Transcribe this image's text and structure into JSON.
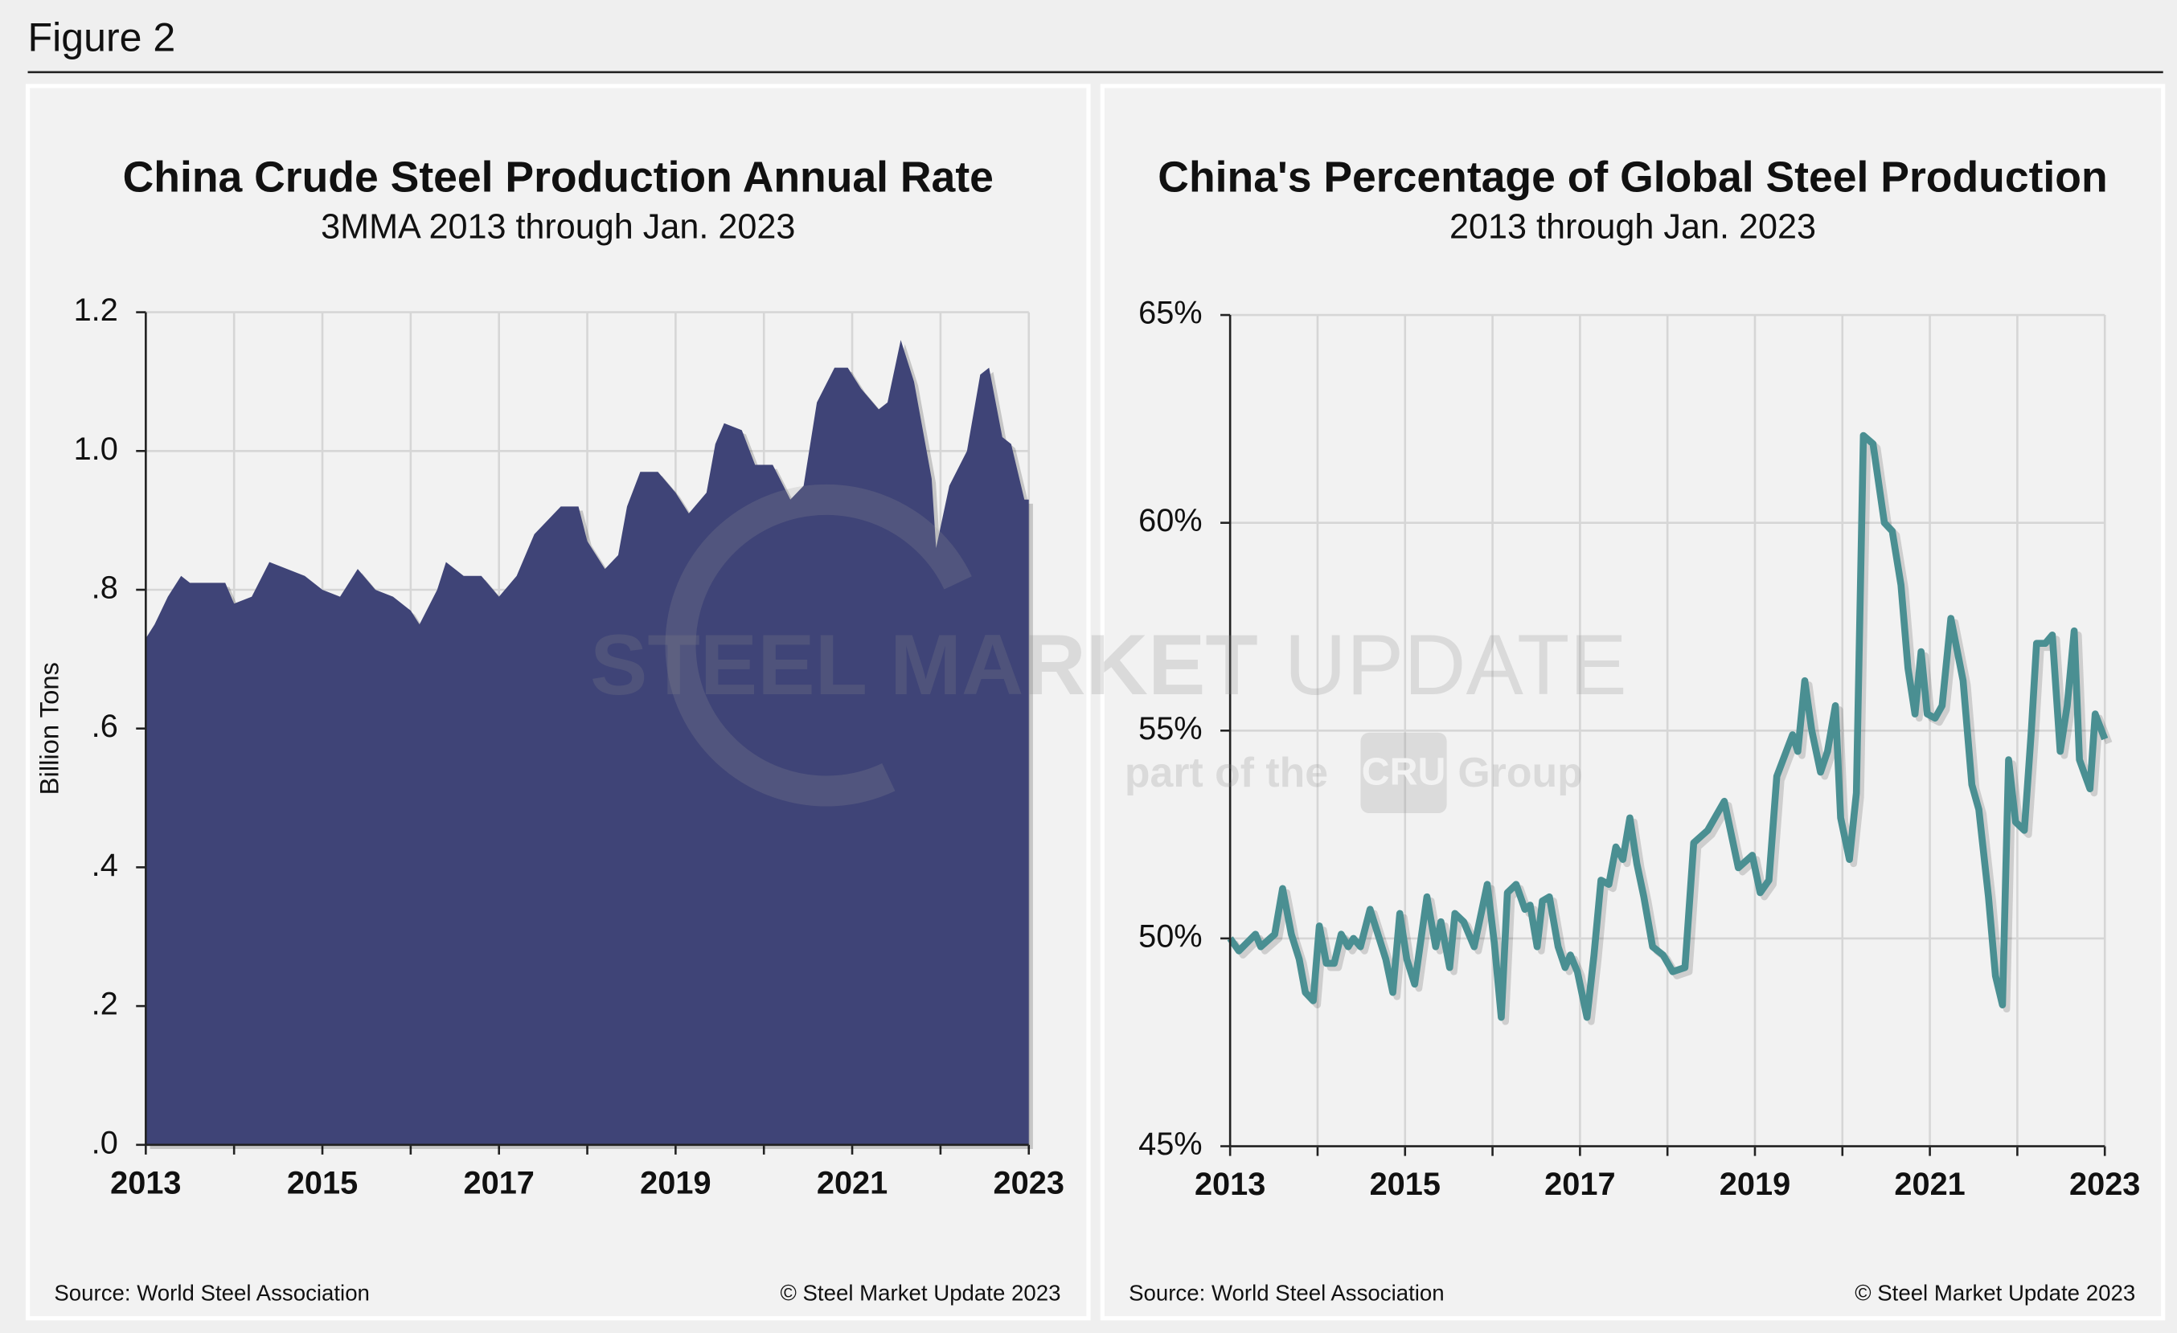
{
  "header": {
    "title": "Figure 2"
  },
  "watermark": {
    "brand_bold": "STEEL MARKET",
    "brand_light": "UPDATE",
    "part": "part of the",
    "logo": "CRU",
    "group": "Group"
  },
  "chart_data": [
    {
      "type": "area",
      "title": "China Crude Steel Production Annual Rate",
      "subtitle": "3MMA 2013 through Jan. 2023",
      "y_label": "Billion Tons",
      "source": "Source: World Steel Association",
      "copyright": "© Steel Market Update 2023",
      "color": "#3f4477",
      "grid": true,
      "x": [
        2013.0,
        2013.1,
        2013.25,
        2013.4,
        2013.5,
        2013.7,
        2013.9,
        2014.0,
        2014.2,
        2014.4,
        2014.6,
        2014.8,
        2015.0,
        2015.2,
        2015.4,
        2015.6,
        2015.8,
        2016.0,
        2016.1,
        2016.3,
        2016.4,
        2016.6,
        2016.8,
        2017.0,
        2017.2,
        2017.4,
        2017.7,
        2017.9,
        2018.0,
        2018.2,
        2018.35,
        2018.45,
        2018.6,
        2018.8,
        2019.0,
        2019.15,
        2019.35,
        2019.45,
        2019.55,
        2019.75,
        2019.9,
        2020.1,
        2020.3,
        2020.45,
        2020.6,
        2020.8,
        2020.95,
        2021.1,
        2021.3,
        2021.4,
        2021.55,
        2021.7,
        2021.9,
        2021.95,
        2022.1,
        2022.3,
        2022.45,
        2022.55,
        2022.7,
        2022.8,
        2022.95,
        2023.0
      ],
      "values": [
        0.73,
        0.75,
        0.79,
        0.82,
        0.81,
        0.81,
        0.81,
        0.78,
        0.79,
        0.84,
        0.83,
        0.82,
        0.8,
        0.79,
        0.83,
        0.8,
        0.79,
        0.77,
        0.75,
        0.8,
        0.84,
        0.82,
        0.82,
        0.79,
        0.82,
        0.88,
        0.92,
        0.92,
        0.87,
        0.83,
        0.85,
        0.92,
        0.97,
        0.97,
        0.94,
        0.91,
        0.94,
        1.01,
        1.04,
        1.03,
        0.98,
        0.98,
        0.93,
        0.95,
        1.07,
        1.12,
        1.12,
        1.09,
        1.06,
        1.07,
        1.16,
        1.1,
        0.96,
        0.86,
        0.95,
        1.0,
        1.11,
        1.12,
        1.02,
        1.01,
        0.93,
        0.93
      ],
      "xlim": [
        2013,
        2023
      ],
      "xticks": [
        2013,
        2015,
        2017,
        2019,
        2021,
        2023
      ],
      "xminor": [
        2014,
        2016,
        2018,
        2020,
        2022
      ],
      "ylim": [
        0,
        1.2
      ],
      "yticks": [
        {
          "value": 0,
          "label": ".0"
        },
        {
          "value": 0.2,
          "label": ".2"
        },
        {
          "value": 0.4,
          "label": ".4"
        },
        {
          "value": 0.6,
          "label": ".6"
        },
        {
          "value": 0.8,
          "label": ".8"
        },
        {
          "value": 1.0,
          "label": "1.0"
        },
        1.2
      ]
    },
    {
      "type": "line",
      "title": "China's Percentage of Global Steel Production",
      "subtitle": "2013 through Jan. 2023",
      "source": "Source: World Steel Association",
      "copyright": "© Steel Market Update 2023",
      "color": "#4a8f92",
      "grid": true,
      "x": [
        2013.0,
        2013.1,
        2013.29,
        2013.35,
        2013.51,
        2013.6,
        2013.7,
        2013.79,
        2013.86,
        2013.95,
        2014.02,
        2014.1,
        2014.19,
        2014.27,
        2014.35,
        2014.41,
        2014.49,
        2014.6,
        2014.78,
        2014.86,
        2014.94,
        2015.02,
        2015.11,
        2015.25,
        2015.35,
        2015.41,
        2015.51,
        2015.57,
        2015.67,
        2015.79,
        2015.94,
        2016.02,
        2016.1,
        2016.17,
        2016.27,
        2016.37,
        2016.43,
        2016.51,
        2016.57,
        2016.65,
        2016.75,
        2016.83,
        2016.89,
        2016.97,
        2017.08,
        2017.16,
        2017.24,
        2017.33,
        2017.41,
        2017.49,
        2017.57,
        2017.65,
        2017.73,
        2017.83,
        2017.95,
        2018.06,
        2018.2,
        2018.3,
        2018.46,
        2018.65,
        2018.81,
        2018.97,
        2019.06,
        2019.16,
        2019.25,
        2019.43,
        2019.49,
        2019.57,
        2019.65,
        2019.75,
        2019.83,
        2019.92,
        2019.98,
        2020.08,
        2020.16,
        2020.24,
        2020.35,
        2020.48,
        2020.57,
        2020.67,
        2020.75,
        2020.83,
        2020.9,
        2020.97,
        2021.06,
        2021.14,
        2021.24,
        2021.38,
        2021.48,
        2021.56,
        2021.67,
        2021.75,
        2021.83,
        2021.9,
        2021.98,
        2022.08,
        2022.16,
        2022.22,
        2022.32,
        2022.4,
        2022.49,
        2022.57,
        2022.65,
        2022.71,
        2022.83,
        2022.89,
        2023.0
      ],
      "values": [
        50.0,
        49.7,
        50.1,
        49.8,
        50.1,
        51.2,
        50.1,
        49.5,
        48.7,
        48.5,
        50.3,
        49.4,
        49.4,
        50.1,
        49.8,
        50.0,
        49.8,
        50.7,
        49.5,
        48.7,
        50.6,
        49.5,
        48.9,
        51.0,
        49.8,
        50.4,
        49.3,
        50.6,
        50.4,
        49.8,
        51.3,
        49.9,
        48.1,
        51.1,
        51.3,
        50.7,
        50.8,
        49.8,
        50.9,
        51.0,
        49.8,
        49.3,
        49.6,
        49.2,
        48.1,
        49.6,
        51.4,
        51.3,
        52.2,
        51.9,
        52.9,
        51.8,
        51.0,
        49.8,
        49.6,
        49.2,
        49.3,
        52.3,
        52.6,
        53.3,
        51.7,
        52.0,
        51.1,
        51.4,
        53.9,
        54.9,
        54.5,
        56.2,
        55.0,
        54.0,
        54.5,
        55.6,
        52.9,
        51.9,
        53.5,
        62.1,
        61.9,
        60.0,
        59.8,
        58.5,
        56.5,
        55.4,
        56.9,
        55.4,
        55.3,
        55.6,
        57.7,
        56.2,
        53.7,
        53.1,
        51.0,
        49.1,
        48.4,
        54.3,
        52.8,
        52.6,
        55.0,
        57.1,
        57.1,
        57.3,
        54.5,
        55.6,
        57.4,
        54.3,
        53.6,
        55.4,
        54.8
      ],
      "xlim": [
        2013,
        2023
      ],
      "xticks": [
        2013,
        2015,
        2017,
        2019,
        2021,
        2023
      ],
      "xminor": [
        2014,
        2016,
        2018,
        2020,
        2022
      ],
      "ylim": [
        45,
        65
      ],
      "yticks": [
        {
          "value": 45,
          "label": "45%"
        },
        {
          "value": 50,
          "label": "50%"
        },
        {
          "value": 55,
          "label": "55%"
        },
        {
          "value": 60,
          "label": "60%"
        },
        {
          "value": 65,
          "label": "65%"
        }
      ]
    }
  ]
}
